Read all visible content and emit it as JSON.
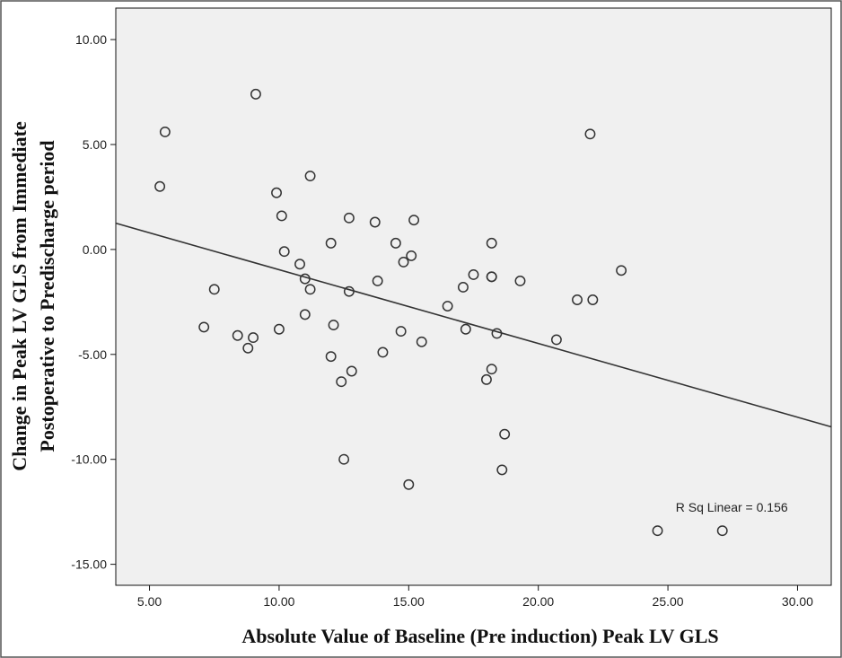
{
  "chart_data": {
    "type": "scatter",
    "title": "",
    "xlabel": "Absolute Value of Baseline (Pre induction) Peak LV GLS",
    "ylabel_lines": [
      "Change in Peak LV GLS from Immediate",
      "Postoperative to Predischarge period"
    ],
    "xlim": [
      3.7,
      31.3
    ],
    "ylim": [
      -16.0,
      11.5
    ],
    "x_ticks": [
      5,
      10,
      15,
      20,
      25,
      30
    ],
    "x_tick_labels": [
      "5.00",
      "10.00",
      "15.00",
      "20.00",
      "25.00",
      "30.00"
    ],
    "y_ticks": [
      10,
      5,
      0,
      -5,
      -10,
      -15
    ],
    "y_tick_labels": [
      "10.00",
      "5.00",
      "0.00",
      "-5.00",
      "-10.00",
      "-15.00"
    ],
    "grid": false,
    "points": [
      {
        "x": 5.4,
        "y": 3.0
      },
      {
        "x": 5.6,
        "y": 5.6
      },
      {
        "x": 7.1,
        "y": -3.7
      },
      {
        "x": 7.5,
        "y": -1.9
      },
      {
        "x": 8.4,
        "y": -4.1
      },
      {
        "x": 8.8,
        "y": -4.7
      },
      {
        "x": 9.0,
        "y": -4.2
      },
      {
        "x": 9.1,
        "y": 7.4
      },
      {
        "x": 9.9,
        "y": 2.7
      },
      {
        "x": 10.0,
        "y": -3.8
      },
      {
        "x": 10.1,
        "y": 1.6
      },
      {
        "x": 10.2,
        "y": -0.1
      },
      {
        "x": 10.8,
        "y": -0.7
      },
      {
        "x": 11.0,
        "y": -1.4
      },
      {
        "x": 11.0,
        "y": -3.1
      },
      {
        "x": 11.2,
        "y": 3.5
      },
      {
        "x": 11.2,
        "y": -1.9
      },
      {
        "x": 12.0,
        "y": 0.3
      },
      {
        "x": 12.0,
        "y": -5.1
      },
      {
        "x": 12.1,
        "y": -3.6
      },
      {
        "x": 12.4,
        "y": -6.3
      },
      {
        "x": 12.5,
        "y": -10.0
      },
      {
        "x": 12.7,
        "y": 1.5
      },
      {
        "x": 12.7,
        "y": -2.0
      },
      {
        "x": 12.8,
        "y": -5.8
      },
      {
        "x": 13.7,
        "y": 1.3
      },
      {
        "x": 13.8,
        "y": -1.5
      },
      {
        "x": 14.0,
        "y": -4.9
      },
      {
        "x": 14.5,
        "y": 0.3
      },
      {
        "x": 14.7,
        "y": -3.9
      },
      {
        "x": 14.8,
        "y": -0.6
      },
      {
        "x": 15.0,
        "y": -11.2
      },
      {
        "x": 15.1,
        "y": -0.3
      },
      {
        "x": 15.2,
        "y": 1.4
      },
      {
        "x": 15.5,
        "y": -4.4
      },
      {
        "x": 16.5,
        "y": -2.7
      },
      {
        "x": 17.1,
        "y": -1.8
      },
      {
        "x": 17.2,
        "y": -3.8
      },
      {
        "x": 17.5,
        "y": -1.2
      },
      {
        "x": 18.0,
        "y": -6.2
      },
      {
        "x": 18.2,
        "y": 0.3
      },
      {
        "x": 18.2,
        "y": -1.3
      },
      {
        "x": 18.2,
        "y": -5.7
      },
      {
        "x": 18.2,
        "y": -1.3
      },
      {
        "x": 18.4,
        "y": -4.0
      },
      {
        "x": 18.6,
        "y": -10.5
      },
      {
        "x": 18.7,
        "y": -8.8
      },
      {
        "x": 19.3,
        "y": -1.5
      },
      {
        "x": 20.7,
        "y": -4.3
      },
      {
        "x": 21.5,
        "y": -2.4
      },
      {
        "x": 22.0,
        "y": 5.5
      },
      {
        "x": 22.1,
        "y": -2.4
      },
      {
        "x": 23.2,
        "y": -1.0
      },
      {
        "x": 24.6,
        "y": -13.4
      },
      {
        "x": 27.1,
        "y": -13.4
      }
    ],
    "fit_line": {
      "x": [
        3.7,
        31.3
      ],
      "y": [
        1.25,
        -8.45
      ]
    },
    "annotations": [
      {
        "text": "R Sq Linear = 0.156",
        "x": 25.3,
        "y": -12.5
      }
    ],
    "colors": {
      "plot_background": "#f0f0f0",
      "marker": "#333333",
      "fit_line": "#333333",
      "frame": "#111111"
    }
  }
}
